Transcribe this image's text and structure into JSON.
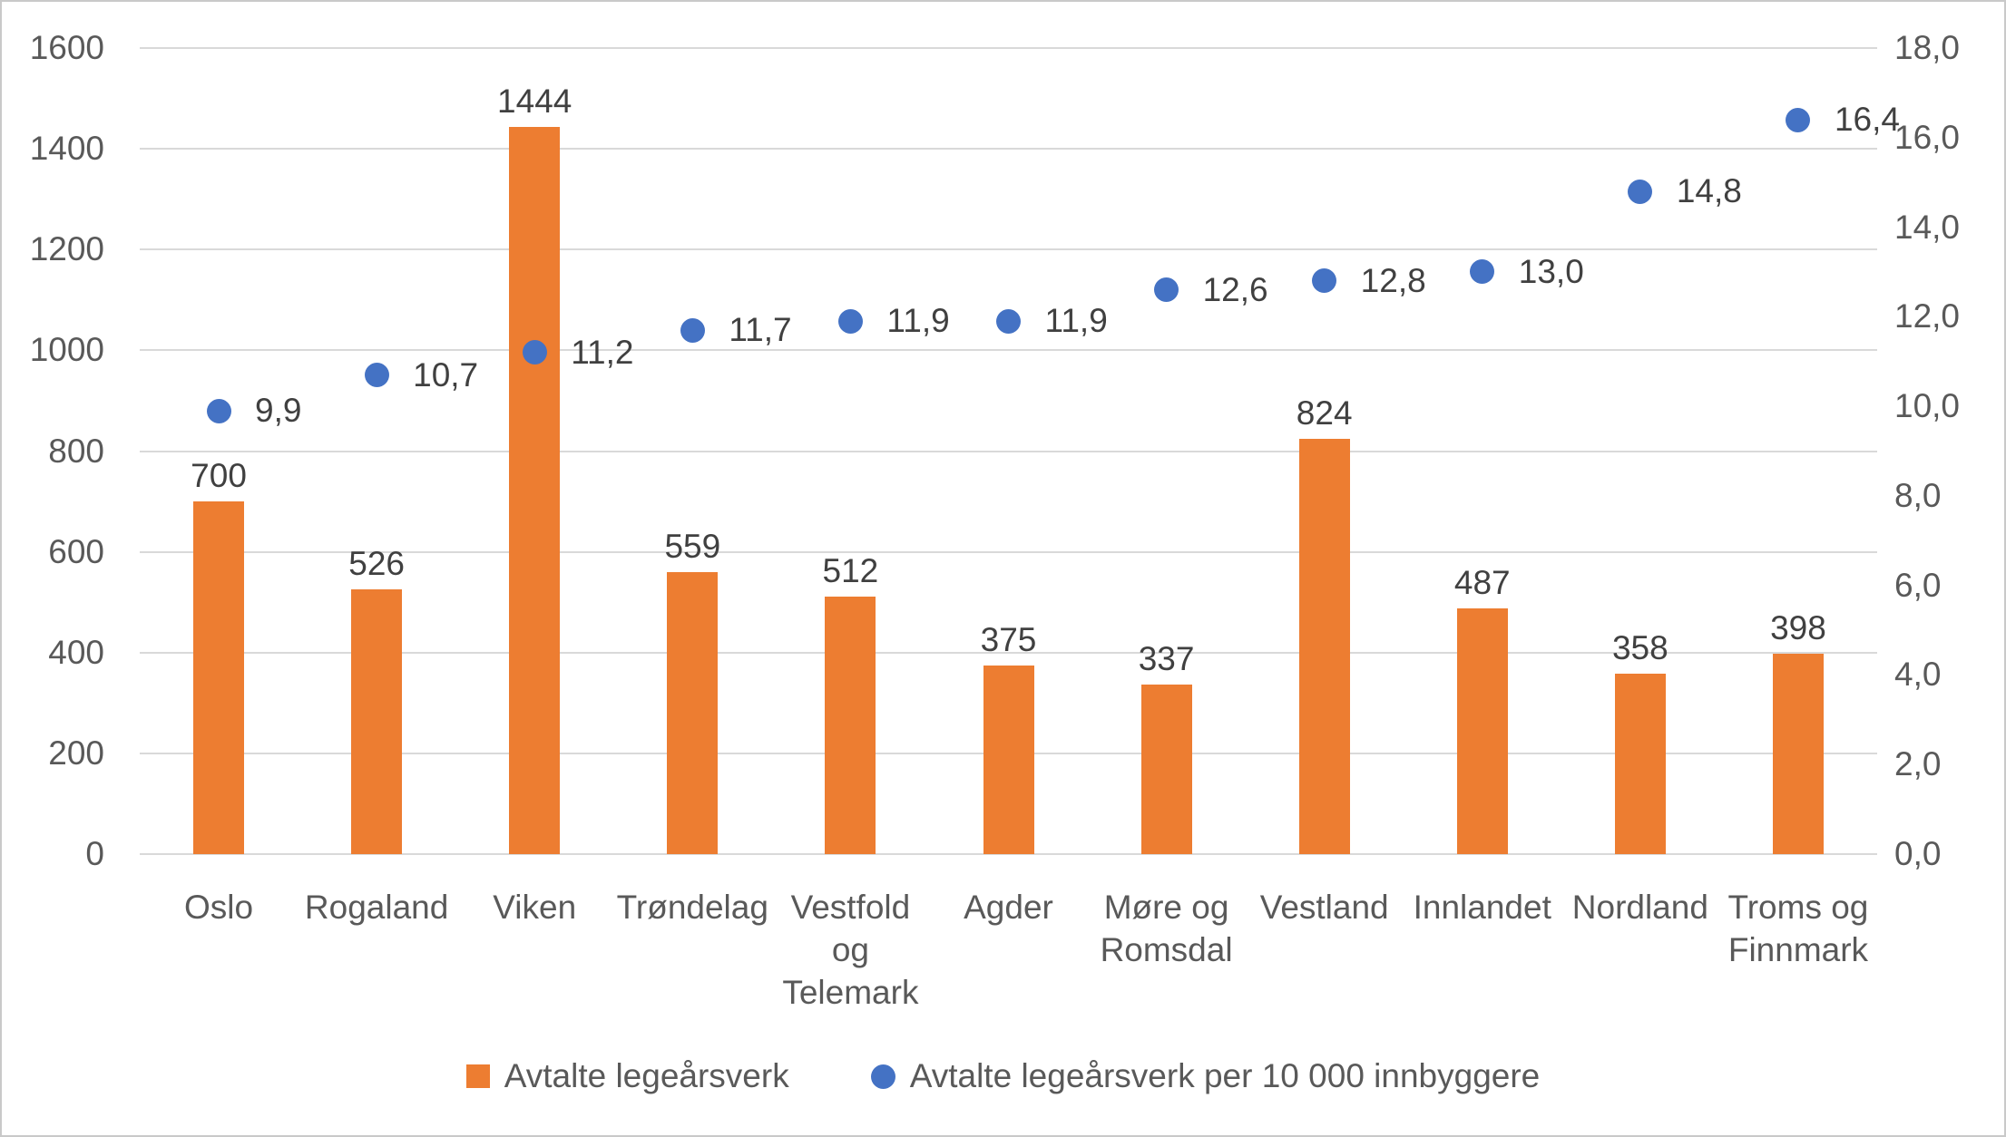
{
  "chart_data": {
    "type": "combo-bar-scatter",
    "categories": [
      "Oslo",
      "Rogaland",
      "Viken",
      "Trøndelag",
      "Vestfold\nog\nTelemark",
      "Agder",
      "Møre og\nRomsdal",
      "Vestland",
      "Innlandet",
      "Nordland",
      "Troms og\nFinnmark"
    ],
    "series": [
      {
        "name": "Avtalte legeårsverk",
        "type": "bar",
        "axis": "left",
        "color": "#ed7d31",
        "values": [
          700,
          526,
          1444,
          559,
          512,
          375,
          337,
          824,
          487,
          358,
          398
        ],
        "labels": [
          "700",
          "526",
          "1444",
          "559",
          "512",
          "375",
          "337",
          "824",
          "487",
          "358",
          "398"
        ]
      },
      {
        "name": "Avtalte legeårsverk per 10 000 innbyggere",
        "type": "scatter",
        "axis": "right",
        "color": "#4472c4",
        "values": [
          9.9,
          10.7,
          11.2,
          11.7,
          11.9,
          11.9,
          12.6,
          12.8,
          13.0,
          14.8,
          16.4
        ],
        "labels": [
          "9,9",
          "10,7",
          "11,2",
          "11,7",
          "11,9",
          "11,9",
          "12,6",
          "12,8",
          "13,0",
          "14,8",
          "16,4"
        ]
      }
    ],
    "left_axis": {
      "min": 0,
      "max": 1600,
      "step": 200,
      "tick_labels": [
        "0",
        "200",
        "400",
        "600",
        "800",
        "1000",
        "1200",
        "1400",
        "1600"
      ]
    },
    "right_axis": {
      "min": 0,
      "max": 18,
      "step": 2,
      "tick_labels": [
        "0,0",
        "2,0",
        "4,0",
        "6,0",
        "8,0",
        "10,0",
        "12,0",
        "14,0",
        "16,0",
        "18,0"
      ]
    },
    "grid": true,
    "legend_position": "bottom",
    "colors": {
      "bar": "#ed7d31",
      "marker": "#4472c4",
      "gridline": "#d9d9d9",
      "axis_text": "#595959",
      "data_label": "#404040",
      "frame": "#c9c9c9",
      "background": "#ffffff"
    }
  }
}
